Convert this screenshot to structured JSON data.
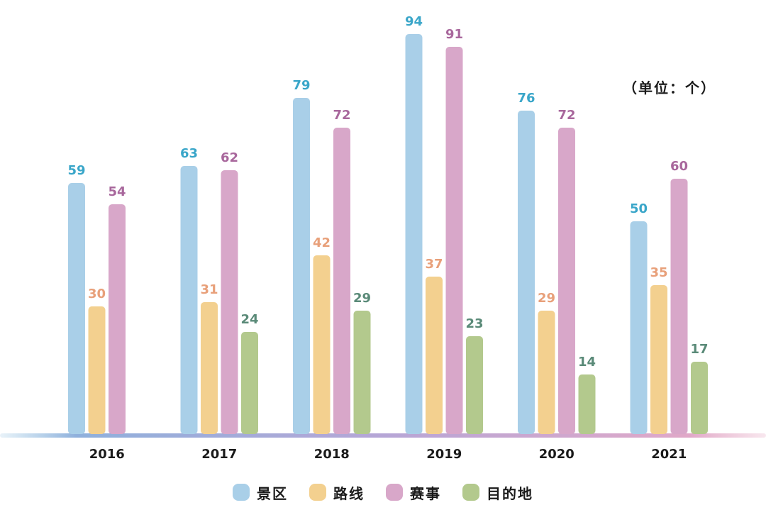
{
  "unit_label": "（单位：个）",
  "chart_data": {
    "type": "bar",
    "categories": [
      "2016",
      "2017",
      "2018",
      "2019",
      "2020",
      "2021"
    ],
    "series": [
      {
        "name": "景区",
        "values": [
          59,
          63,
          79,
          94,
          76,
          50
        ],
        "color": "#a9cfe8",
        "label_color": "#3aa6c9"
      },
      {
        "name": "路线",
        "values": [
          30,
          31,
          42,
          37,
          29,
          35
        ],
        "color": "#f3d08f",
        "label_color": "#e8a07a"
      },
      {
        "name": "赛事",
        "values": [
          54,
          62,
          72,
          91,
          72,
          60
        ],
        "color": "#d8a7c9",
        "label_color": "#a8679c"
      },
      {
        "name": "目的地",
        "values": [
          null,
          24,
          29,
          23,
          14,
          17
        ],
        "color": "#b3c98d",
        "label_color": "#5a8a78"
      }
    ],
    "ylim": [
      0,
      100
    ],
    "grid": false,
    "legend_position": "bottom"
  }
}
